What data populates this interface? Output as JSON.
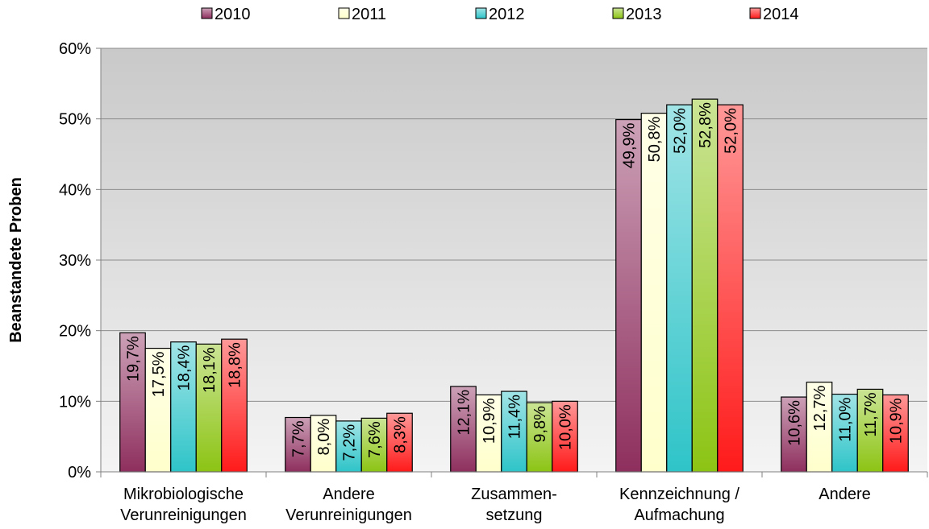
{
  "chart_data": {
    "type": "bar",
    "y_label": "Beanstandete Proben",
    "categories": [
      "Mikrobiologische\nVerunreinigungen",
      "Andere\nVerunreinigungen",
      "Zusammen-\nsetzung",
      "Kennzeichnung /\nAufmachung",
      "Andere"
    ],
    "series": [
      {
        "name": "2010",
        "color": "#8e2f5e",
        "values": [
          19.7,
          7.7,
          12.1,
          49.9,
          10.6
        ],
        "value_labels": [
          "19,7%",
          "7,7%",
          "12,1%",
          "49,9%",
          "10,6%"
        ]
      },
      {
        "name": "2011",
        "color": "#ffffcc",
        "values": [
          17.5,
          8.0,
          10.9,
          50.8,
          12.7
        ],
        "value_labels": [
          "17,5%",
          "8,0%",
          "10,9%",
          "50,8%",
          "12,7%"
        ]
      },
      {
        "name": "2012",
        "color": "#2ec4c8",
        "values": [
          18.4,
          7.2,
          11.4,
          52.0,
          11.0
        ],
        "value_labels": [
          "18,4%",
          "7,2%",
          "11,4%",
          "52,0%",
          "11,0%"
        ]
      },
      {
        "name": "2013",
        "color": "#8cc414",
        "values": [
          18.1,
          7.6,
          9.8,
          52.8,
          11.7
        ],
        "value_labels": [
          "18,1%",
          "7,6%",
          "9,8%",
          "52,8%",
          "11,7%"
        ]
      },
      {
        "name": "2014",
        "color": "#ff1a1a",
        "values": [
          18.8,
          8.3,
          10.0,
          52.0,
          10.9
        ],
        "value_labels": [
          "18,8%",
          "8,3%",
          "10,0%",
          "52,0%",
          "10,9%"
        ]
      }
    ],
    "ylim": [
      0,
      60
    ],
    "yticks": [
      {
        "value": 0,
        "label": "0%"
      },
      {
        "value": 10,
        "label": "10%"
      },
      {
        "value": 20,
        "label": "20%"
      },
      {
        "value": 30,
        "label": "30%"
      },
      {
        "value": 40,
        "label": "40%"
      },
      {
        "value": 50,
        "label": "50%"
      },
      {
        "value": 60,
        "label": "60%"
      }
    ],
    "grid": true,
    "legend": "top"
  }
}
